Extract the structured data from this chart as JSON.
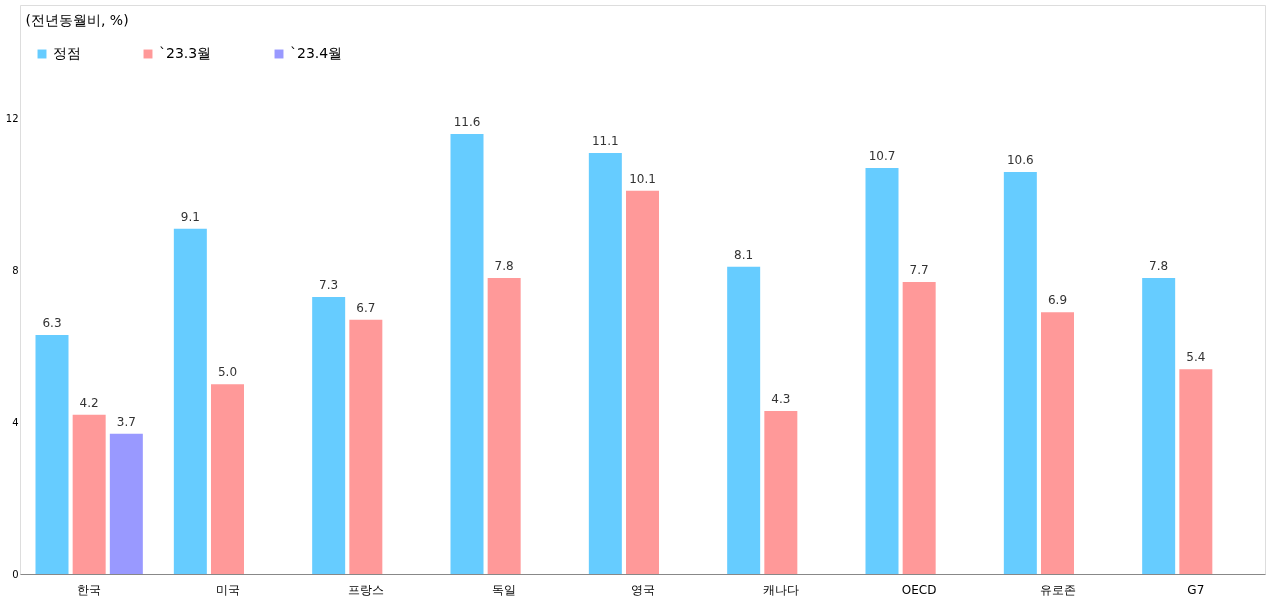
{
  "chart_data": {
    "type": "bar",
    "ylabel": "(전년동월비, %)",
    "categories": [
      "한국",
      "미국",
      "프랑스",
      "독일",
      "영국",
      "캐나다",
      "OECD",
      "유로존",
      "G7"
    ],
    "series": [
      {
        "name": "정점",
        "color": "#66ccff",
        "values": [
          6.3,
          9.1,
          7.3,
          11.6,
          11.1,
          8.1,
          10.7,
          10.6,
          7.8
        ],
        "value_labels": [
          "6.3",
          "9.1",
          "7.3",
          "11.6",
          "11.1",
          "8.1",
          "10.7",
          "10.6",
          "7.8"
        ]
      },
      {
        "name": "`23.3월",
        "color": "#ff9999",
        "values": [
          4.2,
          5.0,
          6.7,
          7.8,
          10.1,
          4.3,
          7.7,
          6.9,
          5.4
        ],
        "value_labels": [
          "4.2",
          "5.0",
          "6.7",
          "7.8",
          "10.1",
          "4.3",
          "7.7",
          "6.9",
          "5.4"
        ]
      },
      {
        "name": "`23.4월",
        "color": "#9999ff",
        "values": [
          3.7,
          null,
          null,
          null,
          null,
          null,
          null,
          null,
          null
        ],
        "value_labels": [
          "3.7",
          null,
          null,
          null,
          null,
          null,
          null,
          null,
          null
        ]
      }
    ],
    "ylim": [
      0,
      15
    ],
    "yticks": [
      0,
      4,
      8,
      12
    ],
    "legend": "top left",
    "grid": false
  }
}
